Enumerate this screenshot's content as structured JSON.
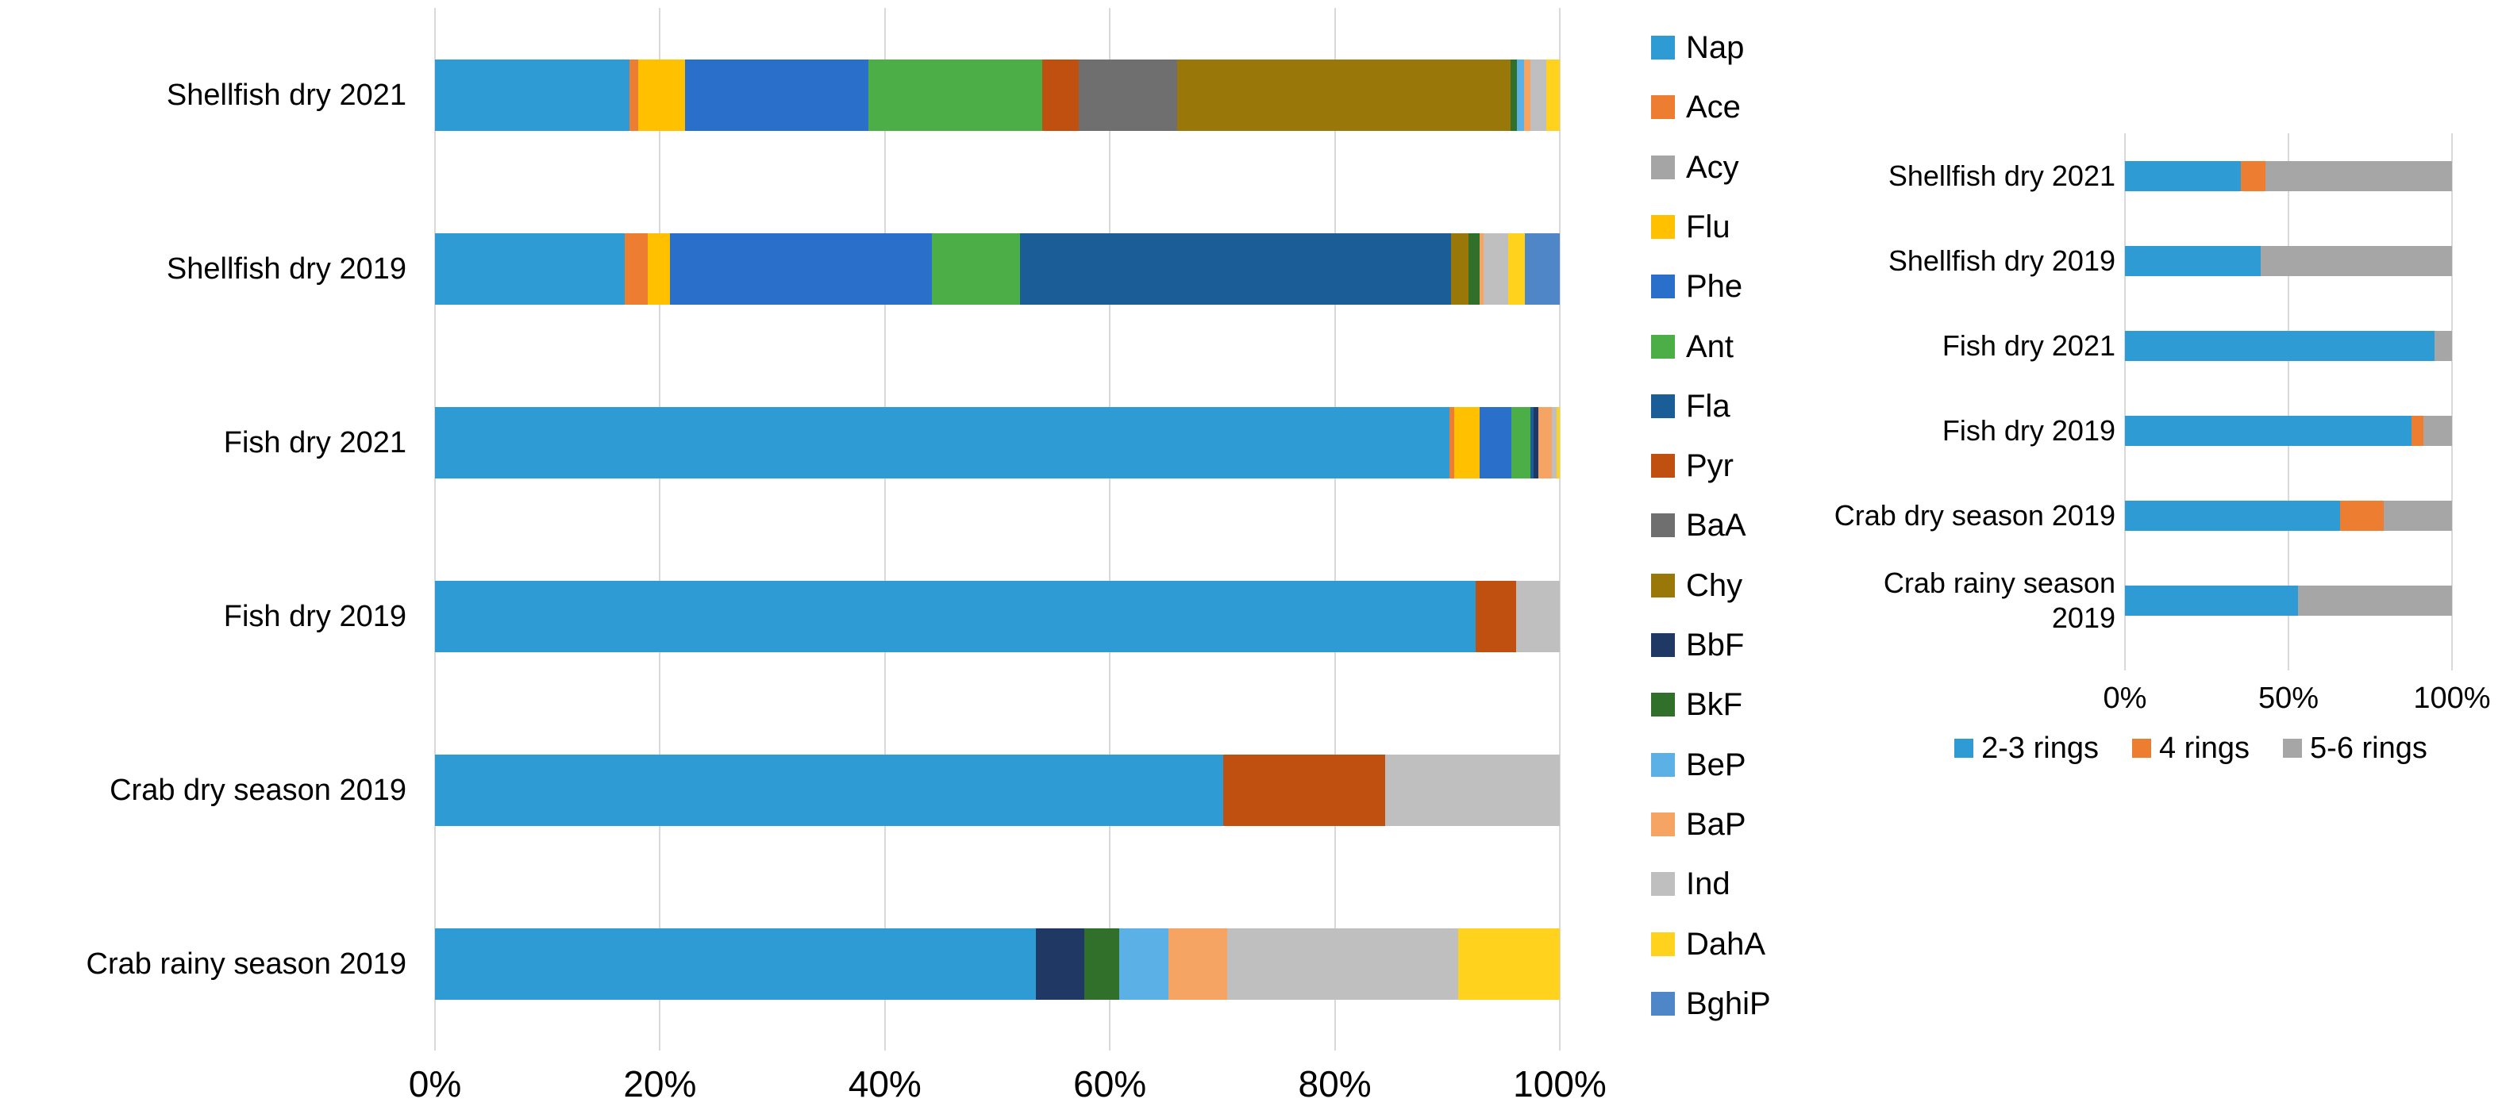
{
  "chart_data": [
    {
      "type": "bar",
      "orientation": "horizontal-stacked",
      "title": "",
      "categories": [
        "Shellfish dry 2021",
        "Shellfish dry 2019",
        "Fish dry 2021",
        "Fish dry 2019",
        "Crab dry season 2019",
        "Crab rainy season 2019"
      ],
      "series": [
        {
          "name": "Nap",
          "color": "#2E9BD5",
          "values": [
            17.3,
            16.9,
            90.2,
            92.5,
            70.1,
            53.4
          ]
        },
        {
          "name": "Ace",
          "color": "#ED7D31",
          "values": [
            0.8,
            2.0,
            0.4,
            0,
            0,
            0
          ]
        },
        {
          "name": "Acy",
          "color": "#A5A5A5",
          "values": [
            0,
            0,
            0,
            0,
            0,
            0
          ]
        },
        {
          "name": "Flu",
          "color": "#FFC000",
          "values": [
            4.1,
            2.0,
            2.3,
            0,
            0,
            0
          ]
        },
        {
          "name": "Phe",
          "color": "#2A6FC9",
          "values": [
            16.3,
            23.3,
            2.8,
            0,
            0,
            0
          ]
        },
        {
          "name": "Ant",
          "color": "#4BAE46",
          "values": [
            15.5,
            7.8,
            1.7,
            0,
            0,
            0
          ]
        },
        {
          "name": "Fla",
          "color": "#1B5E97",
          "values": [
            0,
            38.3,
            0.3,
            0,
            0,
            0
          ]
        },
        {
          "name": "Pyr",
          "color": "#C0500F",
          "values": [
            3.2,
            0,
            0,
            3.6,
            14.4,
            0
          ]
        },
        {
          "name": "BaA",
          "color": "#6F6F6F",
          "values": [
            8.8,
            0,
            0,
            0,
            0,
            0
          ]
        },
        {
          "name": "Chy",
          "color": "#9A7709",
          "values": [
            29.6,
            1.6,
            0,
            0,
            0,
            0
          ]
        },
        {
          "name": "BbF",
          "color": "#1F3864",
          "values": [
            0,
            0,
            0.4,
            0,
            0,
            4.3
          ]
        },
        {
          "name": "BkF",
          "color": "#31702B",
          "values": [
            0.6,
            1.0,
            0,
            0,
            0,
            3.1
          ]
        },
        {
          "name": "BeP",
          "color": "#5BB0E6",
          "values": [
            0.6,
            0,
            0,
            0,
            0,
            4.4
          ]
        },
        {
          "name": "BaP",
          "color": "#F5A464",
          "values": [
            0.6,
            0.3,
            1.2,
            0,
            0,
            5.2
          ]
        },
        {
          "name": "Ind",
          "color": "#BFBFBF",
          "values": [
            1.4,
            2.2,
            0.4,
            3.9,
            15.5,
            20.6
          ]
        },
        {
          "name": "DahA",
          "color": "#FFD21E",
          "values": [
            1.2,
            1.5,
            0.3,
            0,
            0,
            9.0
          ]
        },
        {
          "name": "BghiP",
          "color": "#4E86C8",
          "values": [
            0,
            3.1,
            0,
            0,
            0,
            0
          ]
        }
      ],
      "x_ticks": [
        "0%",
        "20%",
        "40%",
        "60%",
        "80%",
        "100%"
      ],
      "xlim": [
        0,
        100
      ],
      "grid": true,
      "legend_position": "right"
    },
    {
      "type": "bar",
      "orientation": "horizontal-stacked",
      "title": "",
      "categories": [
        "Shellfish dry 2021",
        "Shellfish dry 2019",
        "Fish dry 2021",
        "Fish dry 2019",
        "Crab dry season 2019",
        "Crab rainy season 2019"
      ],
      "series": [
        {
          "name": "2-3 rings",
          "color": "#2E9BD5",
          "values": [
            35.5,
            41.5,
            94.6,
            87.6,
            65.8,
            52.9
          ]
        },
        {
          "name": "4 rings",
          "color": "#ED7D31",
          "values": [
            7.5,
            0,
            0,
            3.7,
            13.3,
            0
          ]
        },
        {
          "name": "5-6 rings",
          "color": "#A6A6A6",
          "values": [
            57.0,
            58.5,
            5.4,
            8.7,
            20.9,
            47.1
          ]
        }
      ],
      "x_ticks": [
        "0%",
        "50%",
        "100%"
      ],
      "xlim": [
        0,
        100
      ],
      "grid": true,
      "legend_position": "bottom"
    }
  ]
}
